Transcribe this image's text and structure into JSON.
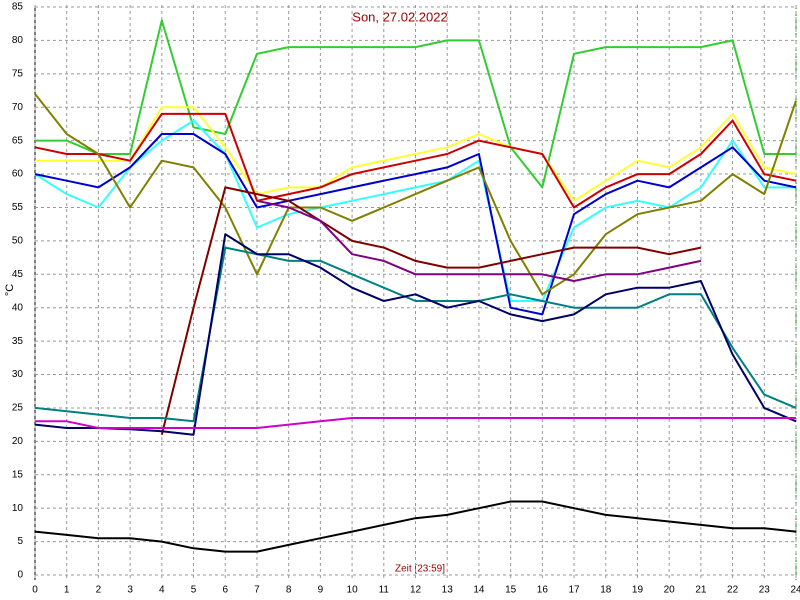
{
  "chart_data": {
    "type": "line",
    "title": "Son, 27.02.2022",
    "ylabel": "°C",
    "xlabel": "Zeit [23:59]",
    "x": [
      0,
      1,
      2,
      3,
      4,
      5,
      6,
      7,
      8,
      9,
      10,
      11,
      12,
      13,
      14,
      15,
      16,
      17,
      18,
      19,
      20,
      21,
      22,
      23,
      24
    ],
    "xlim": [
      0,
      24
    ],
    "xticks": [
      0,
      1,
      2,
      3,
      4,
      5,
      6,
      7,
      8,
      9,
      10,
      11,
      12,
      13,
      14,
      15,
      16,
      17,
      18,
      19,
      20,
      21,
      22,
      23,
      24
    ],
    "ylim": [
      0,
      85
    ],
    "yticks": [
      0,
      5,
      10,
      15,
      20,
      25,
      30,
      35,
      40,
      45,
      50,
      55,
      60,
      65,
      70,
      75,
      80,
      85
    ],
    "grid": true,
    "series": [
      {
        "color": "#33cc33",
        "values": [
          65,
          65,
          63,
          63,
          83,
          67,
          66,
          78,
          79,
          79,
          79,
          79,
          79,
          80,
          80,
          64,
          58,
          78,
          79,
          79,
          79,
          79,
          80,
          63,
          63
        ]
      },
      {
        "color": "#ffff33",
        "values": [
          62,
          62,
          62,
          62,
          70,
          70,
          64,
          57,
          58,
          58,
          61,
          62,
          63,
          64,
          66,
          64,
          63,
          56,
          59,
          62,
          61,
          64,
          69,
          61,
          60
        ]
      },
      {
        "color": "#cc0000",
        "values": [
          64,
          63,
          63,
          62,
          69,
          69,
          69,
          56,
          57,
          58,
          60,
          61,
          62,
          63,
          65,
          64,
          63,
          55,
          58,
          60,
          60,
          63,
          68,
          60,
          59
        ]
      },
      {
        "color": "#33ffff",
        "values": [
          60,
          57,
          55,
          61,
          65,
          68,
          63,
          52,
          54,
          55,
          56,
          57,
          58,
          59,
          62,
          41,
          41,
          52,
          55,
          56,
          55,
          58,
          65,
          58,
          58
        ]
      },
      {
        "color": "#0000cc",
        "values": [
          60,
          59,
          58,
          61,
          66,
          66,
          63,
          55,
          56,
          57,
          58,
          59,
          60,
          61,
          63,
          40,
          39,
          54,
          57,
          59,
          58,
          61,
          64,
          59,
          58
        ]
      },
      {
        "color": "#808000",
        "values": [
          72,
          66,
          63,
          55,
          62,
          61,
          55,
          45,
          55,
          55,
          53,
          55,
          57,
          59,
          61,
          50,
          42,
          45,
          51,
          54,
          55,
          56,
          60,
          57,
          71
        ]
      },
      {
        "color": "#800000",
        "values": [
          null,
          null,
          null,
          null,
          21,
          40,
          58,
          57,
          56,
          53,
          50,
          49,
          47,
          46,
          46,
          47,
          48,
          49,
          49,
          49,
          48,
          49,
          null,
          null,
          null
        ]
      },
      {
        "color": "#800080",
        "values": [
          null,
          null,
          null,
          null,
          null,
          null,
          null,
          56,
          55,
          53,
          48,
          47,
          45,
          45,
          45,
          45,
          45,
          44,
          45,
          45,
          46,
          47,
          null,
          null,
          null
        ]
      },
      {
        "color": "#008080",
        "values": [
          25,
          24.5,
          24,
          23.5,
          23.5,
          23,
          49,
          48,
          47,
          47,
          45,
          43,
          41,
          41,
          41,
          42,
          41,
          40,
          40,
          40,
          42,
          42,
          34,
          27,
          25
        ]
      },
      {
        "color": "#000066",
        "values": [
          22.5,
          22,
          22,
          21.8,
          21.5,
          21,
          51,
          48,
          48,
          46,
          43,
          41,
          42,
          40,
          41,
          39,
          38,
          39,
          42,
          43,
          43,
          44,
          33,
          25,
          23
        ]
      },
      {
        "color": "#cc00cc",
        "values": [
          23,
          23,
          22,
          22,
          22,
          22,
          22,
          22,
          22.5,
          23,
          23.5,
          23.5,
          23.5,
          23.5,
          23.5,
          23.5,
          23.5,
          23.5,
          23.5,
          23.5,
          23.5,
          23.5,
          23.5,
          23.5,
          23.5
        ]
      },
      {
        "color": "#000000",
        "values": [
          6.5,
          6,
          5.5,
          5.5,
          5,
          4,
          3.5,
          3.5,
          4.5,
          5.5,
          6.5,
          7.5,
          8.5,
          9,
          10,
          11,
          11,
          10,
          9,
          8.5,
          8,
          7.5,
          7,
          7,
          6.5
        ]
      }
    ]
  }
}
